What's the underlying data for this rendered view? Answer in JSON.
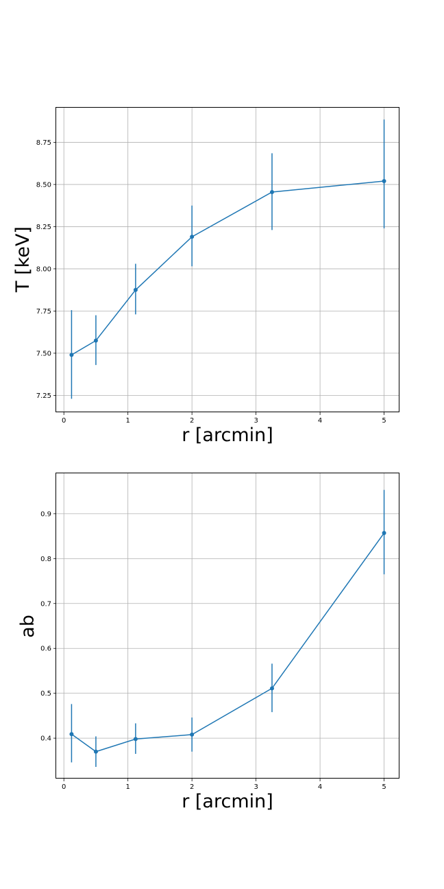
{
  "chart_data": [
    {
      "type": "line",
      "title": "",
      "xlabel": "r [arcmin]",
      "ylabel": "T [keV]",
      "grid": true,
      "xlim": [
        -0.12,
        5.24
      ],
      "ylim": [
        7.15,
        8.955
      ],
      "xticks": [
        0,
        1,
        2,
        3,
        4,
        5
      ],
      "yticks": [
        7.25,
        7.5,
        7.75,
        8.0,
        8.25,
        8.5,
        8.75
      ],
      "xtick_labels": [
        "0",
        "1",
        "2",
        "3",
        "4",
        "5"
      ],
      "ytick_labels": [
        "7.25",
        "7.50",
        "7.75",
        "8.00",
        "8.25",
        "8.50",
        "8.75"
      ],
      "color": "#1f77b4",
      "series": [
        {
          "x": [
            0.12,
            0.5,
            1.12,
            2.0,
            3.25,
            5.0
          ],
          "y": [
            7.49,
            7.575,
            7.875,
            8.19,
            8.455,
            8.52
          ],
          "yerr_low": [
            7.23,
            7.43,
            7.73,
            8.015,
            8.23,
            8.24
          ],
          "yerr_high": [
            7.755,
            7.725,
            8.03,
            8.375,
            8.685,
            8.885
          ]
        }
      ]
    },
    {
      "type": "line",
      "title": "",
      "xlabel": "r [arcmin]",
      "ylabel": "ab",
      "grid": true,
      "xlim": [
        -0.12,
        5.24
      ],
      "ylim": [
        0.31,
        0.99
      ],
      "xticks": [
        0,
        1,
        2,
        3,
        4,
        5
      ],
      "yticks": [
        0.4,
        0.5,
        0.6,
        0.7,
        0.8,
        0.9
      ],
      "xtick_labels": [
        "0",
        "1",
        "2",
        "3",
        "4",
        "5"
      ],
      "ytick_labels": [
        "0.4",
        "0.5",
        "0.6",
        "0.7",
        "0.8",
        "0.9"
      ],
      "color": "#1f77b4",
      "series": [
        {
          "x": [
            0.12,
            0.5,
            1.12,
            2.0,
            3.25,
            5.0
          ],
          "y": [
            0.409,
            0.37,
            0.398,
            0.408,
            0.511,
            0.857
          ],
          "yerr_low": [
            0.346,
            0.336,
            0.365,
            0.37,
            0.458,
            0.765
          ],
          "yerr_high": [
            0.476,
            0.404,
            0.433,
            0.446,
            0.566,
            0.953
          ]
        }
      ]
    }
  ]
}
